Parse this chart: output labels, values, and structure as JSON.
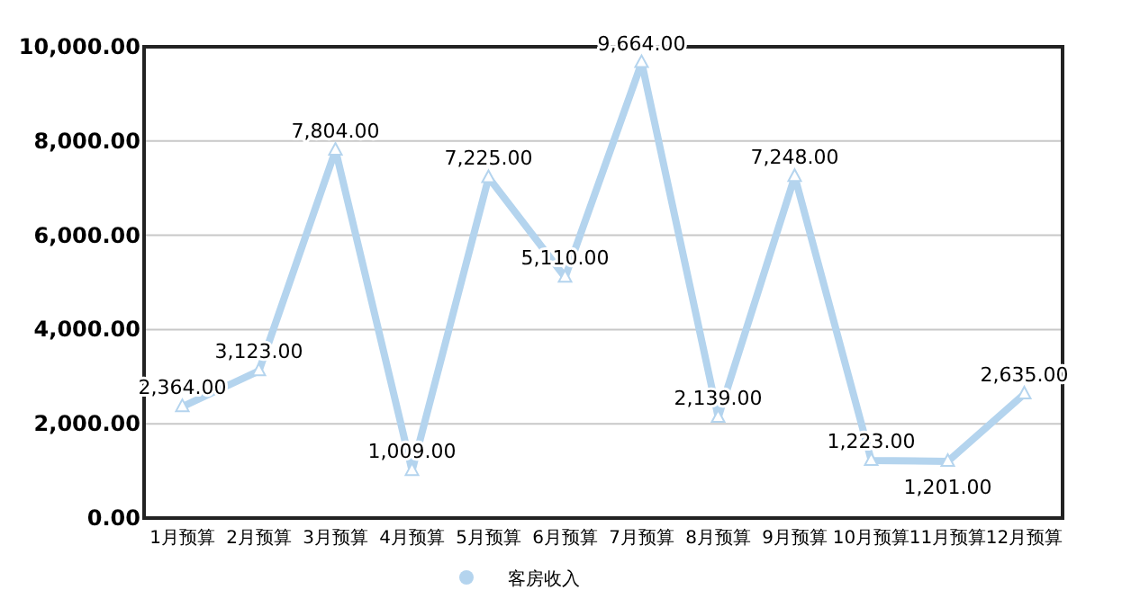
{
  "chart_data": {
    "type": "line",
    "categories": [
      "1月预算",
      "2月预算",
      "3月预算",
      "4月预算",
      "5月预算",
      "6月预算",
      "7月预算",
      "8月预算",
      "9月预算",
      "10月预算",
      "11月预算",
      "12月预算"
    ],
    "series": [
      {
        "name": "客房收入",
        "color": "#b4d4ee",
        "values": [
          2364,
          3123,
          7804,
          1009,
          7225,
          5110,
          9664,
          2139,
          7248,
          1223,
          1201,
          2635
        ]
      }
    ],
    "value_labels": [
      "2,364.00",
      "3,123.00",
      "7,804.00",
      "1,009.00",
      "7,225.00",
      "5,110.00",
      "9,664.00",
      "2,139.00",
      "7,248.00",
      "1,223.00",
      "1,201.00",
      "2,635.00"
    ],
    "ylim": [
      0,
      10000
    ],
    "yticks": [
      {
        "value": 0,
        "label": "0.00"
      },
      {
        "value": 2000,
        "label": "2,000.00"
      },
      {
        "value": 4000,
        "label": "4,000.00"
      },
      {
        "value": 6000,
        "label": "6,000.00"
      },
      {
        "value": 8000,
        "label": "8,000.00"
      },
      {
        "value": 10000,
        "label": "10,000.00"
      }
    ],
    "grid": "y",
    "legend": "bottom",
    "marker": "triangle",
    "line_style": "solid"
  }
}
